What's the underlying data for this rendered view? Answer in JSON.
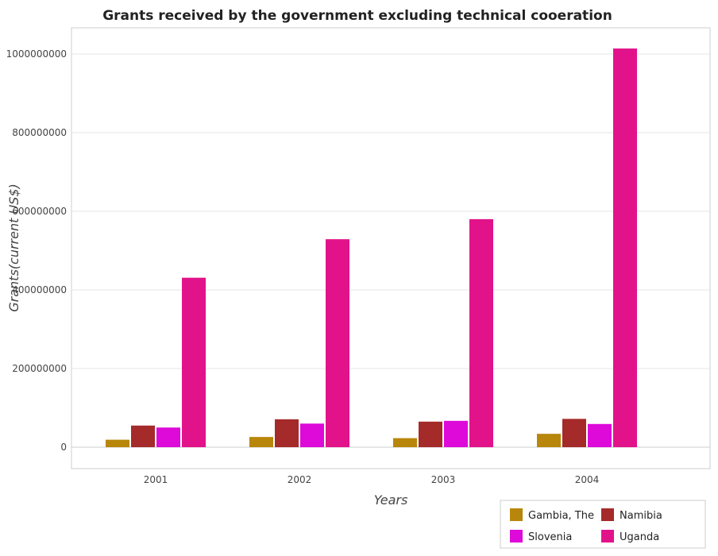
{
  "chart_data": {
    "type": "bar",
    "title": "Grants received by the government excluding technical cooeration",
    "xlabel": "Years",
    "ylabel": "Grants(current US$)",
    "categories": [
      "2001",
      "2002",
      "2003",
      "2004"
    ],
    "series": [
      {
        "name": "Gambia, The",
        "color": "#b8860b",
        "values": [
          19000000,
          26000000,
          23000000,
          34000000
        ]
      },
      {
        "name": "Namibia",
        "color": "#a52a2a",
        "values": [
          55000000,
          71000000,
          65000000,
          72000000
        ]
      },
      {
        "name": "Slovenia",
        "color": "#dd0ad9",
        "values": [
          50000000,
          60000000,
          67000000,
          59000000
        ]
      },
      {
        "name": "Uganda",
        "color": "#e2138a",
        "values": [
          431000000,
          529000000,
          580000000,
          1014000000
        ]
      }
    ],
    "ylim": [
      0,
      1100000000
    ],
    "yticks": [
      0,
      200000000,
      400000000,
      600000000,
      800000000,
      1000000000
    ],
    "ytick_labels": [
      "0",
      "200000000",
      "400000000",
      "600000000",
      "800000000",
      "1000000000"
    ],
    "grid": true,
    "legend_position": "bottom-right"
  }
}
